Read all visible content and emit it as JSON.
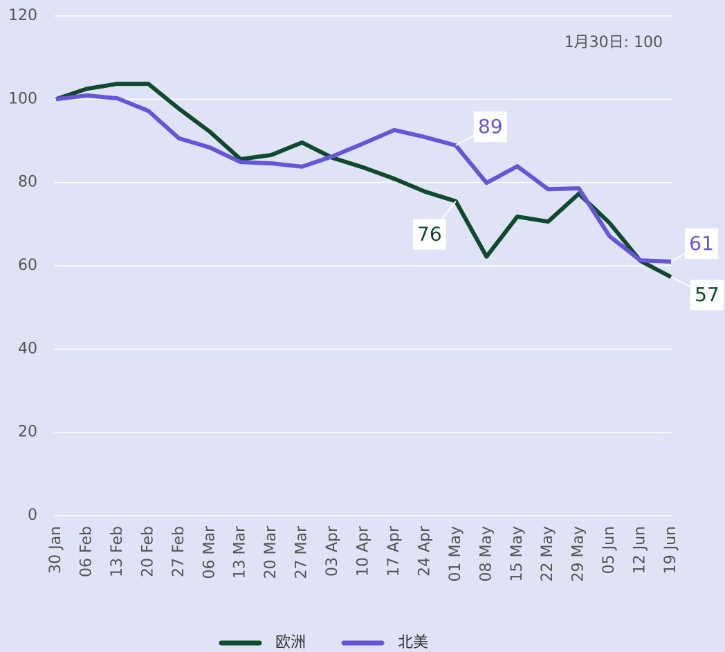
{
  "chart_data": {
    "type": "line",
    "annotation": "1月30日: 100",
    "categories": [
      "30 Jan",
      "06 Feb",
      "13 Feb",
      "20 Feb",
      "27 Feb",
      "06 Mar",
      "13 Mar",
      "20 Mar",
      "27 Mar",
      "03 Apr",
      "10 Apr",
      "17 Apr",
      "24 Apr",
      "01 May",
      "08 May",
      "15 May",
      "22 May",
      "29 May",
      "05 Jun",
      "12 Jun",
      "19 Jun"
    ],
    "series": [
      {
        "name": "欧洲",
        "color": "#0d4a2e",
        "values": [
          100,
          102.5,
          103.7,
          103.7,
          97.7,
          92.2,
          85.6,
          86.6,
          89.6,
          85.9,
          83.6,
          80.9,
          77.8,
          75.5,
          62.2,
          71.8,
          70.6,
          77.3,
          70.3,
          61.2,
          57.3
        ],
        "value_labels": [
          null,
          null,
          null,
          null,
          null,
          null,
          null,
          null,
          null,
          null,
          null,
          null,
          null,
          "76",
          null,
          null,
          null,
          null,
          null,
          null,
          "57"
        ]
      },
      {
        "name": "北美",
        "color": "#6655d8",
        "values": [
          100,
          100.9,
          100.2,
          97.2,
          90.6,
          88.4,
          84.9,
          84.6,
          83.8,
          86.3,
          89.4,
          92.6,
          90.9,
          88.9,
          79.9,
          83.9,
          78.4,
          78.6,
          67.1,
          61.3,
          61.0
        ],
        "value_labels": [
          null,
          null,
          null,
          null,
          null,
          null,
          null,
          null,
          null,
          null,
          null,
          null,
          null,
          "89",
          null,
          null,
          null,
          null,
          null,
          null,
          "61"
        ]
      }
    ],
    "ylim": [
      0,
      120
    ],
    "yticks": [
      0,
      20,
      40,
      60,
      80,
      100,
      120
    ],
    "grid": true,
    "legend": "bottom"
  }
}
